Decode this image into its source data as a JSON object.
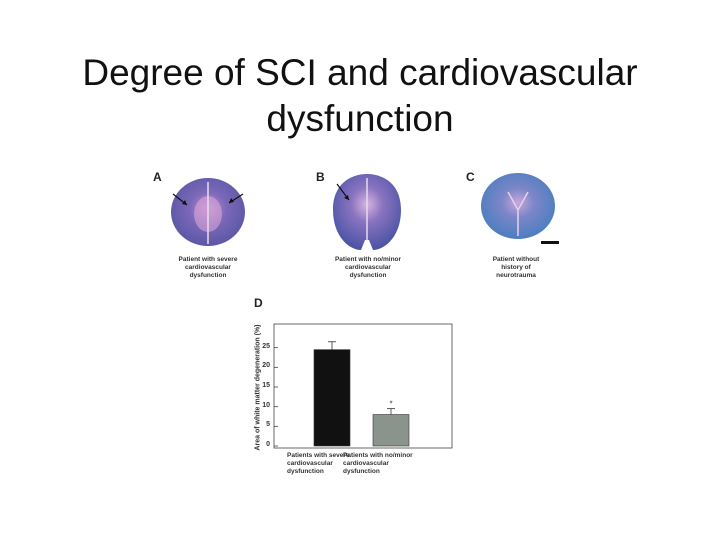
{
  "slide": {
    "title_line1": "Degree of SCI and cardiovascular",
    "title_line2": "dysfunction"
  },
  "panels": [
    {
      "letter": "A",
      "caption": "Patient with severe\ncardiovascular\ndysfunction"
    },
    {
      "letter": "B",
      "caption": "Patient with no/minor\ncardiovascular\ndysfunction"
    },
    {
      "letter": "C",
      "caption": "Patient without\nhistory of\nneurotrauma"
    }
  ],
  "panel_d_letter": "D",
  "colors": {
    "bar1": "#111111",
    "bar2": "#8a938c",
    "stain_purple": "#6a5aa8",
    "stain_blue": "#4f7fc2"
  },
  "chart_data": {
    "type": "bar",
    "categories": [
      "Patients with severe\ncardiovascular\ndysfunction",
      "Patients with no/minor\ncardiovascular\ndysfunction"
    ],
    "values": [
      24.5,
      8.0
    ],
    "errors": [
      2.0,
      1.5
    ],
    "annotations": [
      "",
      "*"
    ],
    "ylabel": "Area of white matter degeneration (%)",
    "yticks": [
      "0",
      "5",
      "10",
      "15",
      "20",
      "25"
    ],
    "ylim": [
      0,
      30
    ]
  }
}
